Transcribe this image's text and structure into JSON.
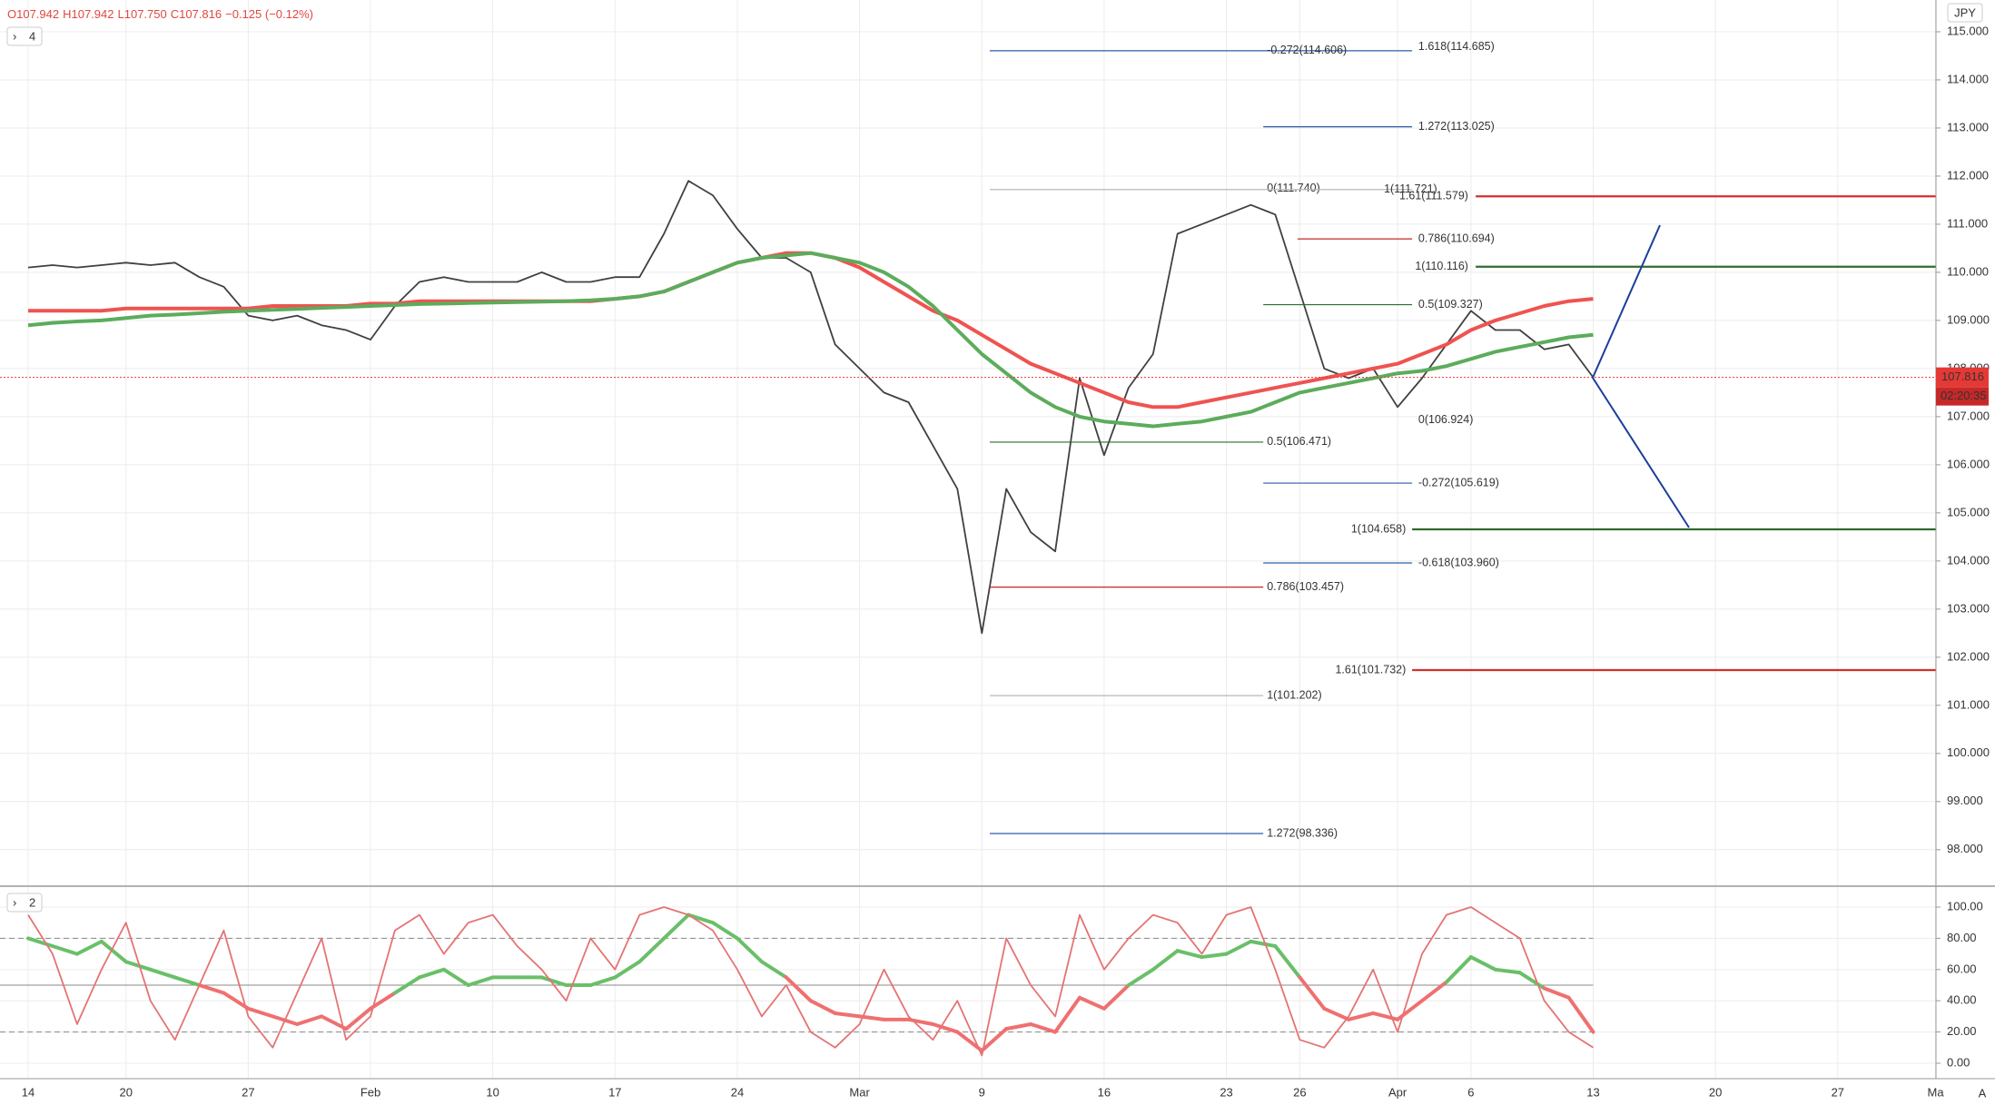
{
  "chart_data": [
    {
      "type": "line",
      "currency": "JPY",
      "pane_badge": "4",
      "legend": [
        "O107.942",
        "H107.942",
        "L107.750",
        "C107.816",
        "−0.125 (−0.12%)"
      ],
      "categories": [
        "14",
        null,
        null,
        null,
        "20",
        null,
        null,
        null,
        null,
        "27",
        null,
        null,
        null,
        null,
        "Feb",
        null,
        null,
        null,
        null,
        "10",
        null,
        null,
        null,
        null,
        "17",
        null,
        null,
        null,
        null,
        "24",
        null,
        null,
        null,
        null,
        "Mar",
        null,
        null,
        null,
        null,
        "9",
        null,
        null,
        null,
        null,
        "16",
        null,
        null,
        null,
        null,
        "23",
        null,
        null,
        "26",
        null,
        null,
        null,
        "Apr",
        null,
        null,
        "6",
        null,
        null,
        null,
        null,
        "13",
        null,
        null,
        null,
        null,
        "20",
        null,
        null,
        null,
        null,
        "27",
        null,
        null,
        null,
        "Ma"
      ],
      "series": [
        {
          "color": "#404040",
          "values": [
            110.1,
            110.15,
            110.1,
            110.15,
            110.2,
            110.15,
            110.2,
            109.9,
            109.7,
            109.1,
            109.0,
            109.1,
            108.9,
            108.8,
            108.6,
            109.3,
            109.8,
            109.9,
            109.8,
            109.8,
            109.8,
            110.0,
            109.8,
            109.8,
            109.9,
            109.9,
            110.8,
            111.9,
            111.6,
            110.9,
            110.3,
            110.3,
            110.0,
            108.5,
            108.0,
            107.5,
            107.3,
            106.4,
            105.5,
            102.5,
            105.5,
            104.6,
            104.2,
            107.8,
            106.2,
            107.6,
            108.3,
            110.8,
            111.0,
            111.2,
            111.4,
            111.2,
            109.6,
            108.0,
            107.8,
            108.0,
            107.2,
            107.8,
            108.5,
            109.2,
            108.8,
            108.8,
            108.4,
            108.5,
            107.816,
            null,
            null,
            null,
            null,
            null,
            null,
            null,
            null,
            null,
            null,
            null,
            null,
            null,
            null
          ]
        },
        {
          "color": "#ef5350",
          "values": [
            109.2,
            109.2,
            109.2,
            109.2,
            109.25,
            109.25,
            109.25,
            109.25,
            109.25,
            109.25,
            109.3,
            109.3,
            109.3,
            109.3,
            109.35,
            109.35,
            109.4,
            109.4,
            109.4,
            109.4,
            109.4,
            109.4,
            109.4,
            109.4,
            109.45,
            109.5,
            109.6,
            109.8,
            110.0,
            110.2,
            110.3,
            110.4,
            110.4,
            110.3,
            110.1,
            109.8,
            109.5,
            109.2,
            109.0,
            108.7,
            108.4,
            108.1,
            107.9,
            107.7,
            107.5,
            107.3,
            107.2,
            107.2,
            107.3,
            107.4,
            107.5,
            107.6,
            107.7,
            107.8,
            107.9,
            108.0,
            108.1,
            108.3,
            108.5,
            108.8,
            109.0,
            109.15,
            109.3,
            109.4,
            109.45,
            null,
            null,
            null,
            null,
            null,
            null,
            null,
            null,
            null,
            null,
            null,
            null,
            null,
            null
          ]
        },
        {
          "color": "#5cac5c",
          "values": [
            108.9,
            108.95,
            108.98,
            109.0,
            109.05,
            109.1,
            109.12,
            109.15,
            109.18,
            109.2,
            109.22,
            109.24,
            109.26,
            109.28,
            109.3,
            109.32,
            109.34,
            109.35,
            109.36,
            109.37,
            109.38,
            109.39,
            109.4,
            109.42,
            109.45,
            109.5,
            109.6,
            109.8,
            110.0,
            110.2,
            110.3,
            110.35,
            110.4,
            110.3,
            110.2,
            110.0,
            109.7,
            109.3,
            108.8,
            108.3,
            107.9,
            107.5,
            107.2,
            107.0,
            106.9,
            106.85,
            106.8,
            106.85,
            106.9,
            107.0,
            107.1,
            107.3,
            107.5,
            107.6,
            107.7,
            107.8,
            107.9,
            107.95,
            108.05,
            108.2,
            108.35,
            108.45,
            108.55,
            108.65,
            108.7,
            null,
            null,
            null,
            null,
            null,
            null,
            null,
            null,
            null,
            null,
            null,
            null,
            null,
            null
          ]
        }
      ],
      "ylim": [
        97.26,
        115.66
      ],
      "yticks": [
        {
          "value": 98,
          "label": "98.000"
        },
        {
          "value": 99,
          "label": "99.000"
        },
        {
          "value": 100,
          "label": "100.000"
        },
        {
          "value": 101,
          "label": "101.000"
        },
        {
          "value": 102,
          "label": "102.000"
        },
        {
          "value": 103,
          "label": "103.000"
        },
        {
          "value": 104,
          "label": "104.000"
        },
        {
          "value": 105,
          "label": "105.000"
        },
        {
          "value": 106,
          "label": "106.000"
        },
        {
          "value": 107,
          "label": "107.000"
        },
        {
          "value": 108,
          "label": "108.000"
        },
        {
          "value": 109,
          "label": "109.000"
        },
        {
          "value": 110,
          "label": "110.000"
        },
        {
          "value": 111,
          "label": "111.000"
        },
        {
          "value": 112,
          "label": "112.000"
        },
        {
          "value": 113,
          "label": "113.000"
        },
        {
          "value": 114,
          "label": "114.000"
        },
        {
          "value": 115,
          "label": "115.000"
        }
      ],
      "grid": true,
      "last_price": {
        "value": 107.816,
        "label": "107.816",
        "countdown": "02:20:35",
        "color": "#e53935"
      },
      "fib_levels": [
        {
          "value": 114.606,
          "label": "-0.272(114.606)",
          "color": "#2a5caa"
        },
        {
          "value": 114.685,
          "label": "1.618(114.685)",
          "color": "#2a5caa"
        },
        {
          "value": 113.025,
          "label": "1.272(113.025)",
          "color": "#2a5caa"
        },
        {
          "value": 111.74,
          "label": "0(111.740)",
          "color": "#b8b8b8"
        },
        {
          "value": 111.721,
          "label": "1(111.721)",
          "color": "#b8b8b8"
        },
        {
          "value": 111.579,
          "label": "1.61(111.579)",
          "color": "#d32f2f"
        },
        {
          "value": 110.694,
          "label": "0.786(110.694)",
          "color": "#c62828"
        },
        {
          "value": 110.116,
          "label": "1(110.116)",
          "color": "#2e6b2e"
        },
        {
          "value": 109.327,
          "label": "0.5(109.327)",
          "color": "#2e6b2e"
        },
        {
          "value": 106.924,
          "label": "0(106.924)",
          "color": "#b8b8b8"
        },
        {
          "value": 106.471,
          "label": "0.5(106.471)",
          "color": "#2e6b2e"
        },
        {
          "value": 105.619,
          "label": "-0.272(105.619)",
          "color": "#2a5caa"
        },
        {
          "value": 104.658,
          "label": "1(104.658)",
          "color": "#2e6b2e"
        },
        {
          "value": 103.96,
          "label": "-0.618(103.960)",
          "color": "#2a5caa"
        },
        {
          "value": 103.457,
          "label": "0.786(103.457)",
          "color": "#c62828"
        },
        {
          "value": 101.732,
          "label": "1.61(101.732)",
          "color": "#d32f2f"
        },
        {
          "value": 101.202,
          "label": "1(101.202)",
          "color": "#b8b8b8"
        },
        {
          "value": 98.336,
          "label": "1.272(98.336)",
          "color": "#2a5caa"
        }
      ]
    },
    {
      "type": "line",
      "pane_badge": "2",
      "series": [
        {
          "color_above": "#6abf69",
          "color_below": "#ef7070",
          "threshold": 50,
          "values": [
            80,
            75,
            70,
            78,
            65,
            60,
            55,
            50,
            45,
            35,
            30,
            25,
            30,
            22,
            35,
            45,
            55,
            60,
            50,
            55,
            55,
            55,
            50,
            50,
            55,
            65,
            80,
            95,
            90,
            80,
            65,
            55,
            40,
            32,
            30,
            28,
            28,
            25,
            20,
            8,
            22,
            25,
            20,
            42,
            35,
            50,
            60,
            72,
            68,
            70,
            78,
            75,
            55,
            35,
            28,
            32,
            28,
            40,
            52,
            68,
            60,
            58,
            48,
            42,
            20,
            null,
            null,
            null,
            null,
            null,
            null,
            null,
            null,
            null,
            null,
            null,
            null,
            null,
            null
          ]
        },
        {
          "color": "#e57373",
          "values": [
            95,
            70,
            25,
            60,
            90,
            40,
            15,
            50,
            85,
            30,
            10,
            45,
            80,
            15,
            30,
            85,
            95,
            70,
            90,
            95,
            75,
            60,
            40,
            80,
            60,
            95,
            100,
            95,
            85,
            60,
            30,
            50,
            20,
            10,
            25,
            60,
            30,
            15,
            40,
            5,
            80,
            50,
            30,
            95,
            60,
            80,
            95,
            90,
            70,
            95,
            100,
            60,
            15,
            10,
            30,
            60,
            20,
            70,
            95,
            100,
            90,
            80,
            40,
            20,
            10,
            null,
            null,
            null,
            null,
            null,
            null,
            null,
            null,
            null,
            null,
            null,
            null,
            null,
            null
          ]
        }
      ],
      "ylim": [
        -9.9,
        113.4
      ],
      "yticks": [
        {
          "value": 0,
          "label": "0.00"
        },
        {
          "value": 20,
          "label": "20.00"
        },
        {
          "value": 40,
          "label": "40.00"
        },
        {
          "value": 60,
          "label": "60.00"
        },
        {
          "value": 80,
          "label": "80.00"
        },
        {
          "value": 100,
          "label": "100.00"
        }
      ],
      "levels": [
        20,
        50,
        80
      ],
      "grid": true
    }
  ],
  "corner_button": "A"
}
